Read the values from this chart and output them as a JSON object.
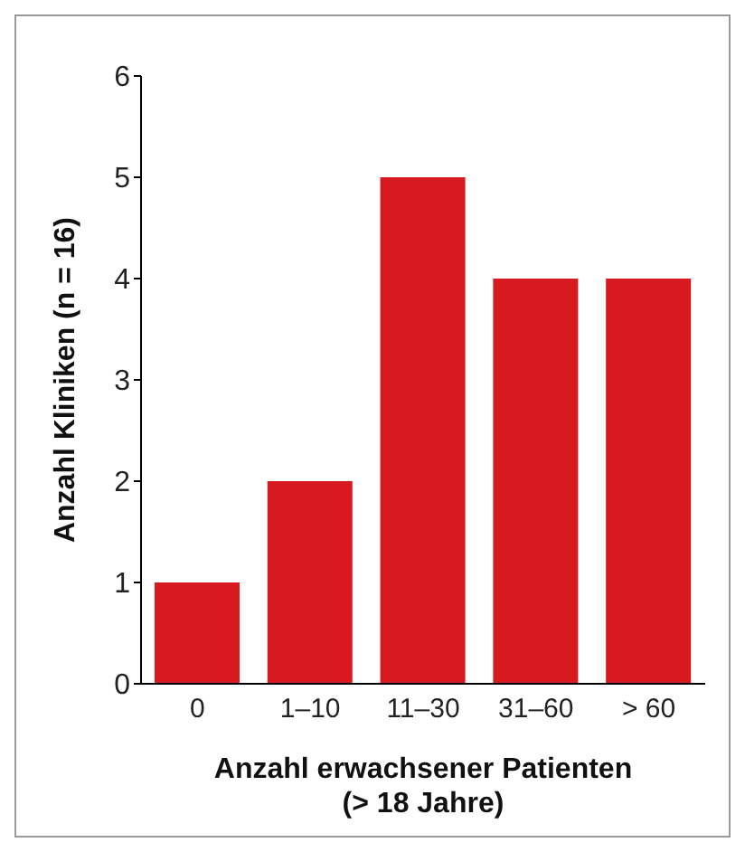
{
  "chart_data": {
    "type": "bar",
    "xlabel": "Anzahl erwachsener Patienten\n(> 18 Jahre)",
    "ylabel": "Anzahl Kliniken (n = 16)",
    "categories": [
      "0",
      "1–10",
      "11–30",
      "31–60",
      "> 60"
    ],
    "values": [
      1,
      2,
      5,
      4,
      4
    ],
    "color": "#d71920",
    "ylim": [
      0,
      6
    ],
    "yticks": [
      0,
      1,
      2,
      3,
      4,
      5,
      6
    ],
    "grid": false,
    "legend": false
  }
}
